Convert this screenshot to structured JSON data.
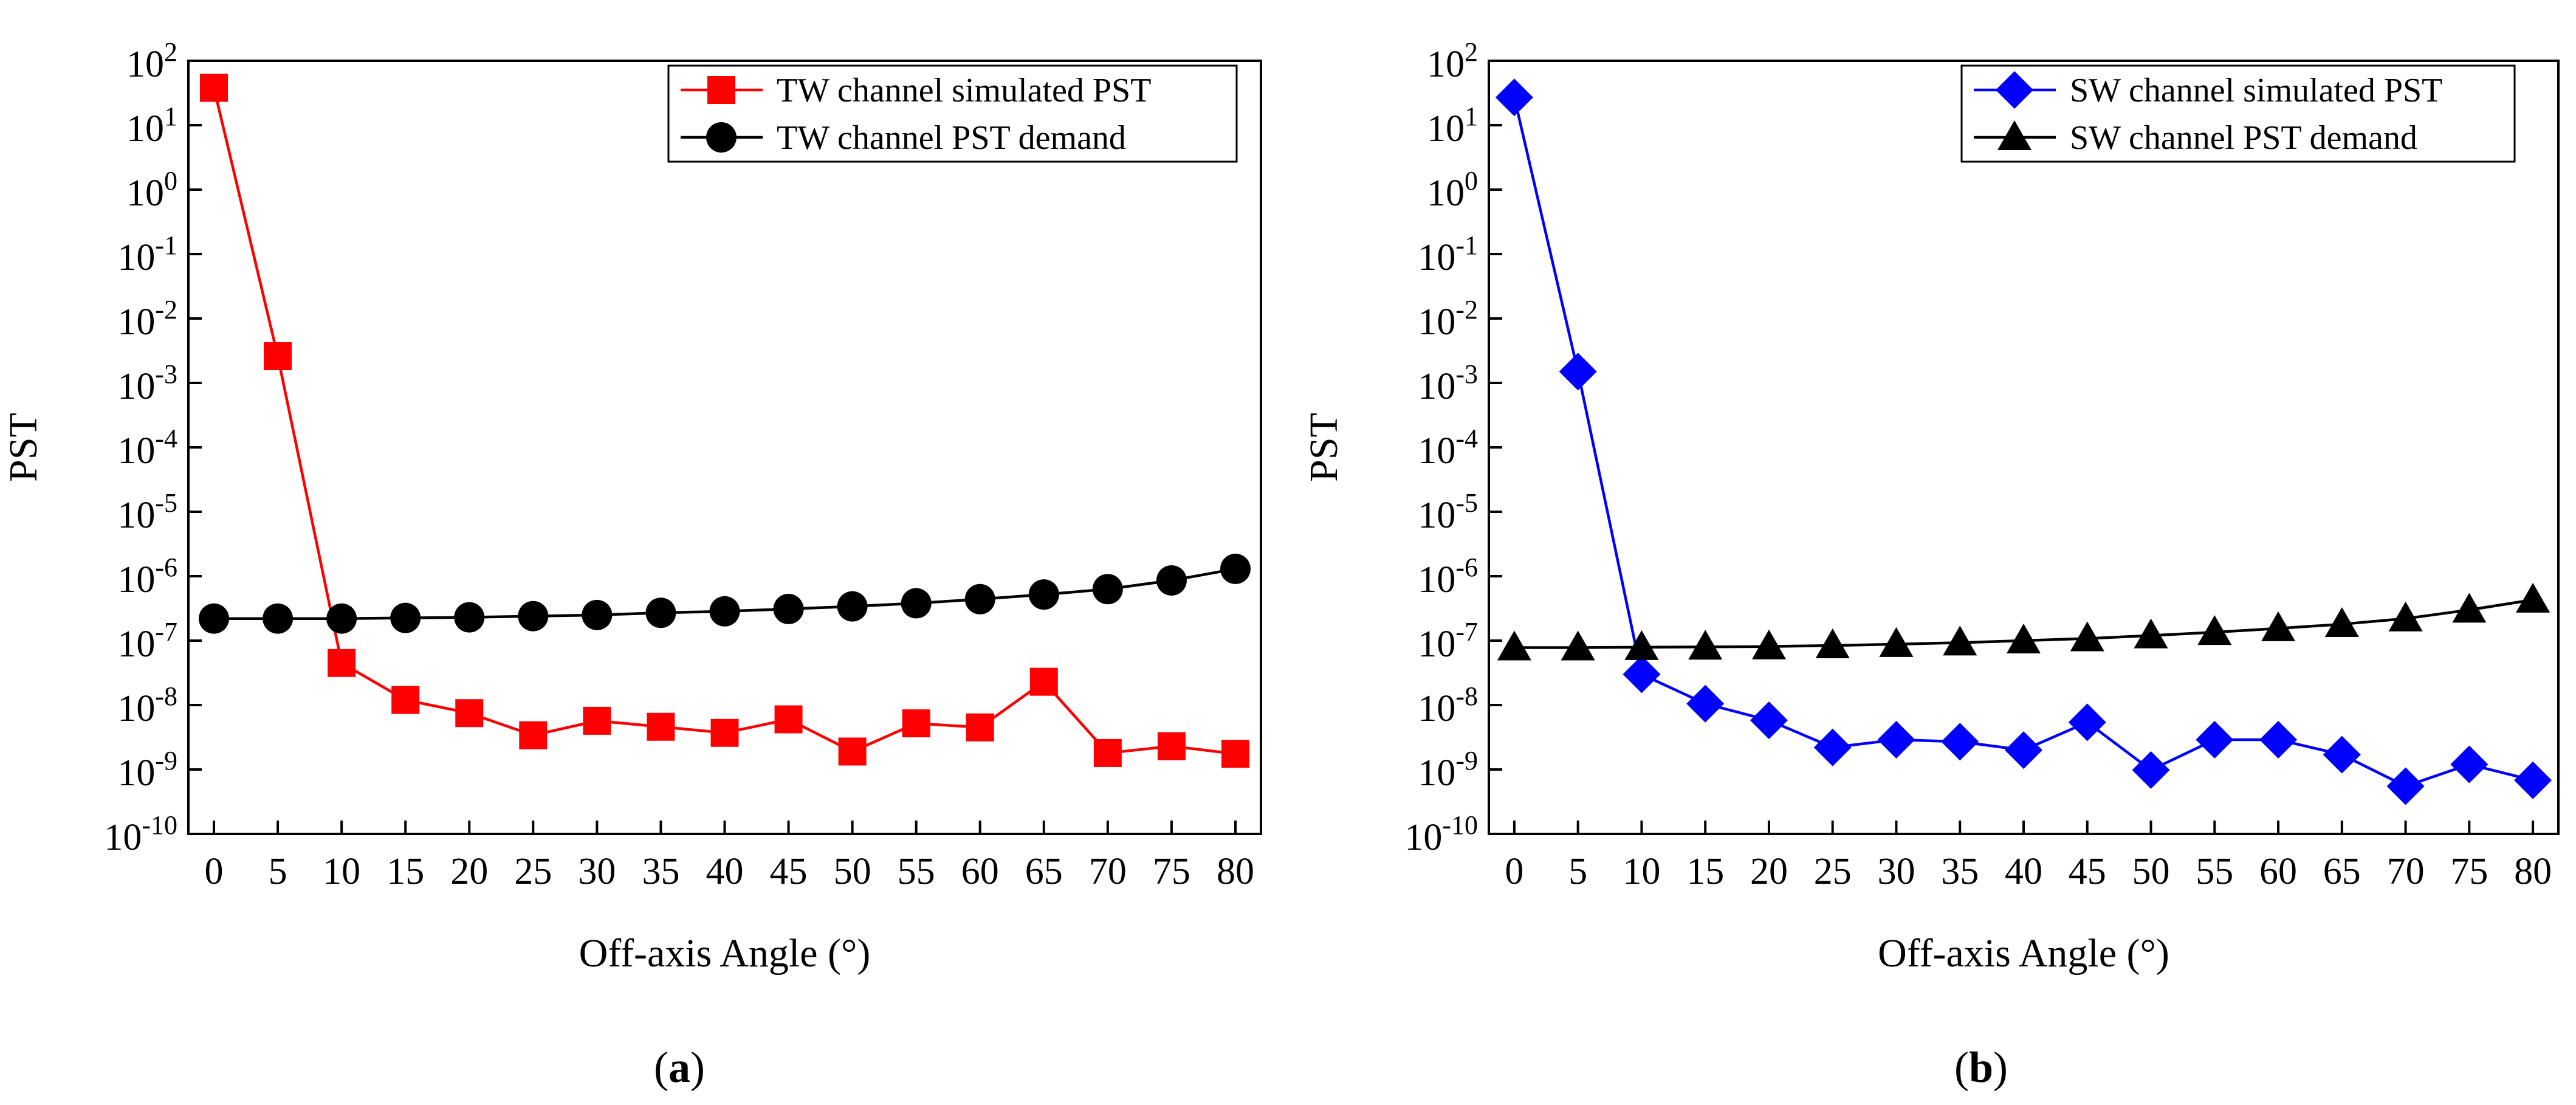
{
  "chart_data": [
    {
      "type": "line",
      "panel": "a",
      "panel_label": "a",
      "xlabel": "Off-axis Angle (°)",
      "ylabel": "PST",
      "x": [
        0,
        5,
        10,
        15,
        20,
        25,
        30,
        35,
        40,
        45,
        50,
        55,
        60,
        65,
        70,
        75,
        80
      ],
      "xlim": [
        -2,
        82
      ],
      "ylim": [
        1e-10,
        100
      ],
      "y_scale": "log",
      "x_tick_labels": [
        "0",
        "5",
        "10",
        "15",
        "20",
        "25",
        "30",
        "35",
        "40",
        "45",
        "50",
        "55",
        "60",
        "65",
        "70",
        "75",
        "80"
      ],
      "y_tick_exponents": [
        "-10",
        "-9",
        "-8",
        "-7",
        "-6",
        "-5",
        "-4",
        "-3",
        "-2",
        "-1",
        "0",
        "1",
        "2"
      ],
      "y_tick_base": "10",
      "grid": false,
      "legend_position": "top-right",
      "series": [
        {
          "name": "TW channel simulated PST",
          "color": "#ff0000",
          "marker": "square",
          "values": [
            38,
            0.0026,
            4.5e-08,
            1.2e-08,
            7.5e-09,
            3.4e-09,
            5.7e-09,
            4.6e-09,
            3.7e-09,
            6e-09,
            1.9e-09,
            5.2e-09,
            4.5e-09,
            2.3e-08,
            1.8e-09,
            2.3e-09,
            1.75e-09
          ]
        },
        {
          "name": "TW channel PST demand",
          "color": "#000000",
          "marker": "circle",
          "values": [
            2.2e-07,
            2.2e-07,
            2.2e-07,
            2.25e-07,
            2.3e-07,
            2.4e-07,
            2.5e-07,
            2.7e-07,
            2.85e-07,
            3.1e-07,
            3.4e-07,
            3.8e-07,
            4.4e-07,
            5.2e-07,
            6.3e-07,
            8.6e-07,
            1.3e-06
          ]
        }
      ]
    },
    {
      "type": "line",
      "panel": "b",
      "panel_label": "b",
      "xlabel": "Off-axis Angle (°)",
      "ylabel": "PST",
      "x": [
        0,
        5,
        10,
        15,
        20,
        25,
        30,
        35,
        40,
        45,
        50,
        55,
        60,
        65,
        70,
        75,
        80
      ],
      "xlim": [
        -2,
        82
      ],
      "ylim": [
        1e-10,
        100
      ],
      "y_scale": "log",
      "x_tick_labels": [
        "0",
        "5",
        "10",
        "15",
        "20",
        "25",
        "30",
        "35",
        "40",
        "45",
        "50",
        "55",
        "60",
        "65",
        "70",
        "75",
        "80"
      ],
      "y_tick_exponents": [
        "-10",
        "-9",
        "-8",
        "-7",
        "-6",
        "-5",
        "-4",
        "-3",
        "-2",
        "-1",
        "0",
        "1",
        "2"
      ],
      "y_tick_base": "10",
      "grid": false,
      "legend_position": "top-right",
      "series": [
        {
          "name": "SW channel simulated PST",
          "color": "#0000ff",
          "marker": "diamond",
          "values": [
            27,
            0.0015,
            3e-08,
            1.05e-08,
            5.8e-09,
            2.2e-09,
            2.9e-09,
            2.7e-09,
            2e-09,
            5.4e-09,
            9.8e-10,
            2.9e-09,
            2.9e-09,
            1.7e-09,
            5.5e-10,
            1.2e-09,
            6.8e-10
          ]
        },
        {
          "name": "SW channel PST demand",
          "color": "#000000",
          "marker": "triangle",
          "values": [
            7.8e-08,
            7.8e-08,
            7.9e-08,
            8e-08,
            8.1e-08,
            8.4e-08,
            8.8e-08,
            9.3e-08,
            1e-07,
            1.08e-07,
            1.2e-07,
            1.35e-07,
            1.55e-07,
            1.8e-07,
            2.2e-07,
            3e-07,
            4.3e-07
          ]
        }
      ]
    }
  ]
}
